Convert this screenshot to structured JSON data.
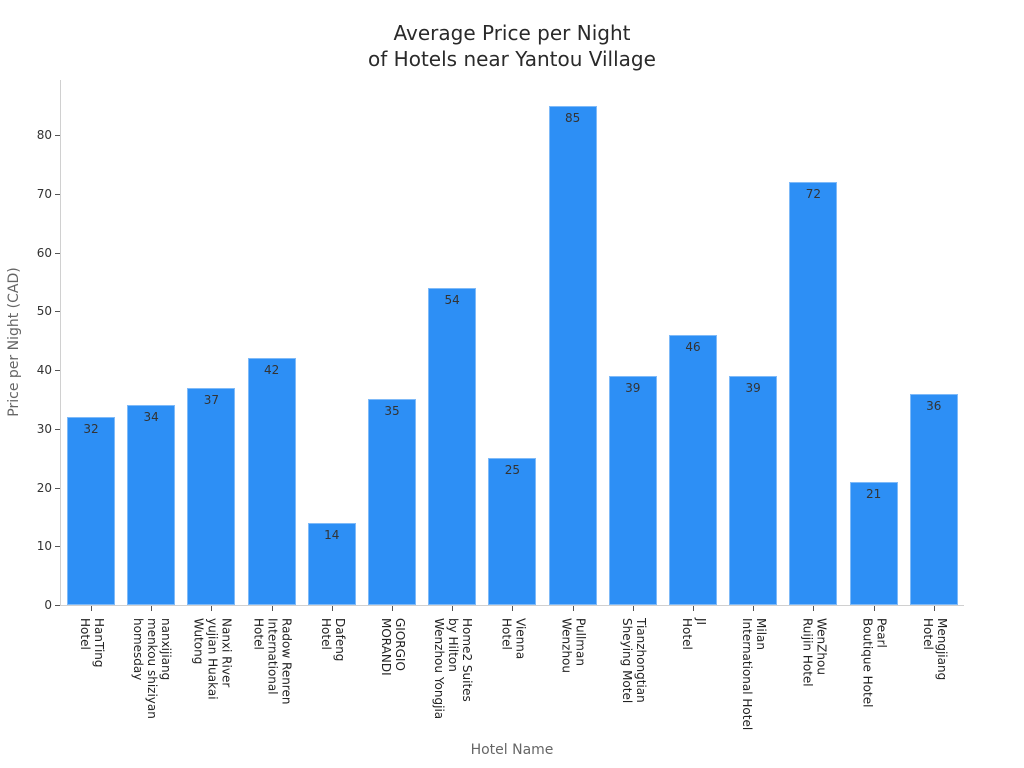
{
  "chart_data": {
    "type": "bar",
    "title": "Average Price per Night\nof Hotels near Yantou Village",
    "title_lines": [
      "Average Price per Night",
      "of Hotels near Yantou Village"
    ],
    "xlabel": "Hotel Name",
    "ylabel": "Price per Night (CAD)",
    "ylim": [
      0,
      89
    ],
    "yticks": [
      0,
      10,
      20,
      30,
      40,
      50,
      60,
      70,
      80
    ],
    "grid": false,
    "legend": null,
    "bar_color": "#2d8ff5",
    "categories": [
      "HanTing Hotel",
      "nanxijiang menkou shiziyan homesday",
      "Nanxi River yujian Huakai Wutong",
      "Radow Renren International Hotel",
      "Dafeng Hotel",
      "GIORGIO MORANDI",
      "Home2 Suites by Hilton Wenzhou Yongjia",
      "Vienna Hotel",
      "Pullman Wenzhou",
      "Tianzhongtian Sheying Motel",
      "JI Hotel",
      "Milan International Hotel",
      "WenZhou Ruijin Hotel",
      "Pearl Boutique Hotel",
      "Mengjiang Hotel"
    ],
    "category_label_lines": [
      [
        "HanTing",
        "Hotel"
      ],
      [
        "nanxijiang",
        "menkou shiziyan",
        "homesday"
      ],
      [
        "Nanxi River",
        "yujian Huakai",
        "Wutong"
      ],
      [
        "Radow Renren",
        "International",
        "Hotel"
      ],
      [
        "Dafeng",
        "Hotel"
      ],
      [
        "GIORGIO",
        "MORANDI"
      ],
      [
        "Home2 Suites",
        "by Hilton",
        "Wenzhou Yongjia"
      ],
      [
        "Vienna",
        "Hotel"
      ],
      [
        "Pullman",
        "Wenzhou"
      ],
      [
        "Tianzhongtian",
        "Sheying Motel"
      ],
      [
        "JI",
        "Hotel"
      ],
      [
        "Milan",
        "International Hotel"
      ],
      [
        "WenZhou",
        "Ruijin Hotel"
      ],
      [
        "Pearl",
        "Boutique Hotel"
      ],
      [
        "Mengjiang",
        "Hotel"
      ]
    ],
    "values": [
      32,
      34,
      37,
      42,
      14,
      35,
      54,
      25,
      85,
      39,
      46,
      39,
      72,
      21,
      36
    ]
  }
}
